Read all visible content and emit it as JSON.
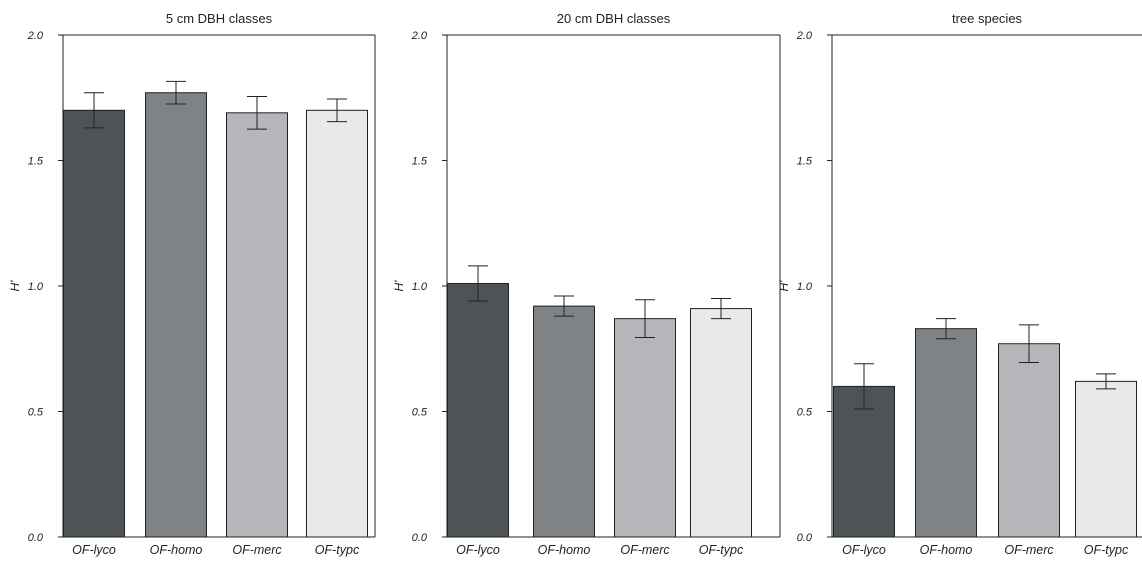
{
  "chart_data": [
    {
      "type": "bar",
      "title": "5 cm DBH classes",
      "ylabel": "H'",
      "xlabel": "",
      "ylim": [
        0,
        2.0
      ],
      "yticks": [
        "0.0",
        "0.5",
        "1.0",
        "1.5",
        "2.0"
      ],
      "categories": [
        "OF-lyco",
        "OF-homo",
        "OF-merc",
        "OF-typc"
      ],
      "values": [
        1.7,
        1.77,
        1.69,
        1.7
      ],
      "error": [
        0.07,
        0.045,
        0.065,
        0.045
      ],
      "colors": [
        "#4e5356",
        "#7f8386",
        "#b4b6b9",
        "#e8e9eb"
      ],
      "grid": false
    },
    {
      "type": "bar",
      "title": "20 cm DBH classes",
      "ylabel": "H'",
      "xlabel": "",
      "ylim": [
        0,
        2.0
      ],
      "yticks": [
        "0.0",
        "0.5",
        "1.0",
        "1.5",
        "2.0"
      ],
      "categories": [
        "OF-lyco",
        "OF-homo",
        "OF-merc",
        "OF-typc"
      ],
      "values": [
        1.01,
        0.92,
        0.87,
        0.91
      ],
      "error": [
        0.07,
        0.04,
        0.075,
        0.04
      ],
      "colors": [
        "#4e5356",
        "#7f8386",
        "#b4b6b9",
        "#e8e9eb"
      ],
      "grid": false
    },
    {
      "type": "bar",
      "title": "tree species",
      "ylabel": "H'",
      "xlabel": "",
      "ylim": [
        0,
        2.0
      ],
      "yticks": [
        "0.0",
        "0.5",
        "1.0",
        "1.5",
        "2.0"
      ],
      "categories": [
        "OF-lyco",
        "OF-homo",
        "OF-merc",
        "OF-typc"
      ],
      "values": [
        0.6,
        0.83,
        0.77,
        0.62
      ],
      "error": [
        0.09,
        0.04,
        0.075,
        0.03
      ],
      "colors": [
        "#4e5356",
        "#7f8386",
        "#b4b6b9",
        "#e8e9eb"
      ],
      "grid": false
    }
  ]
}
